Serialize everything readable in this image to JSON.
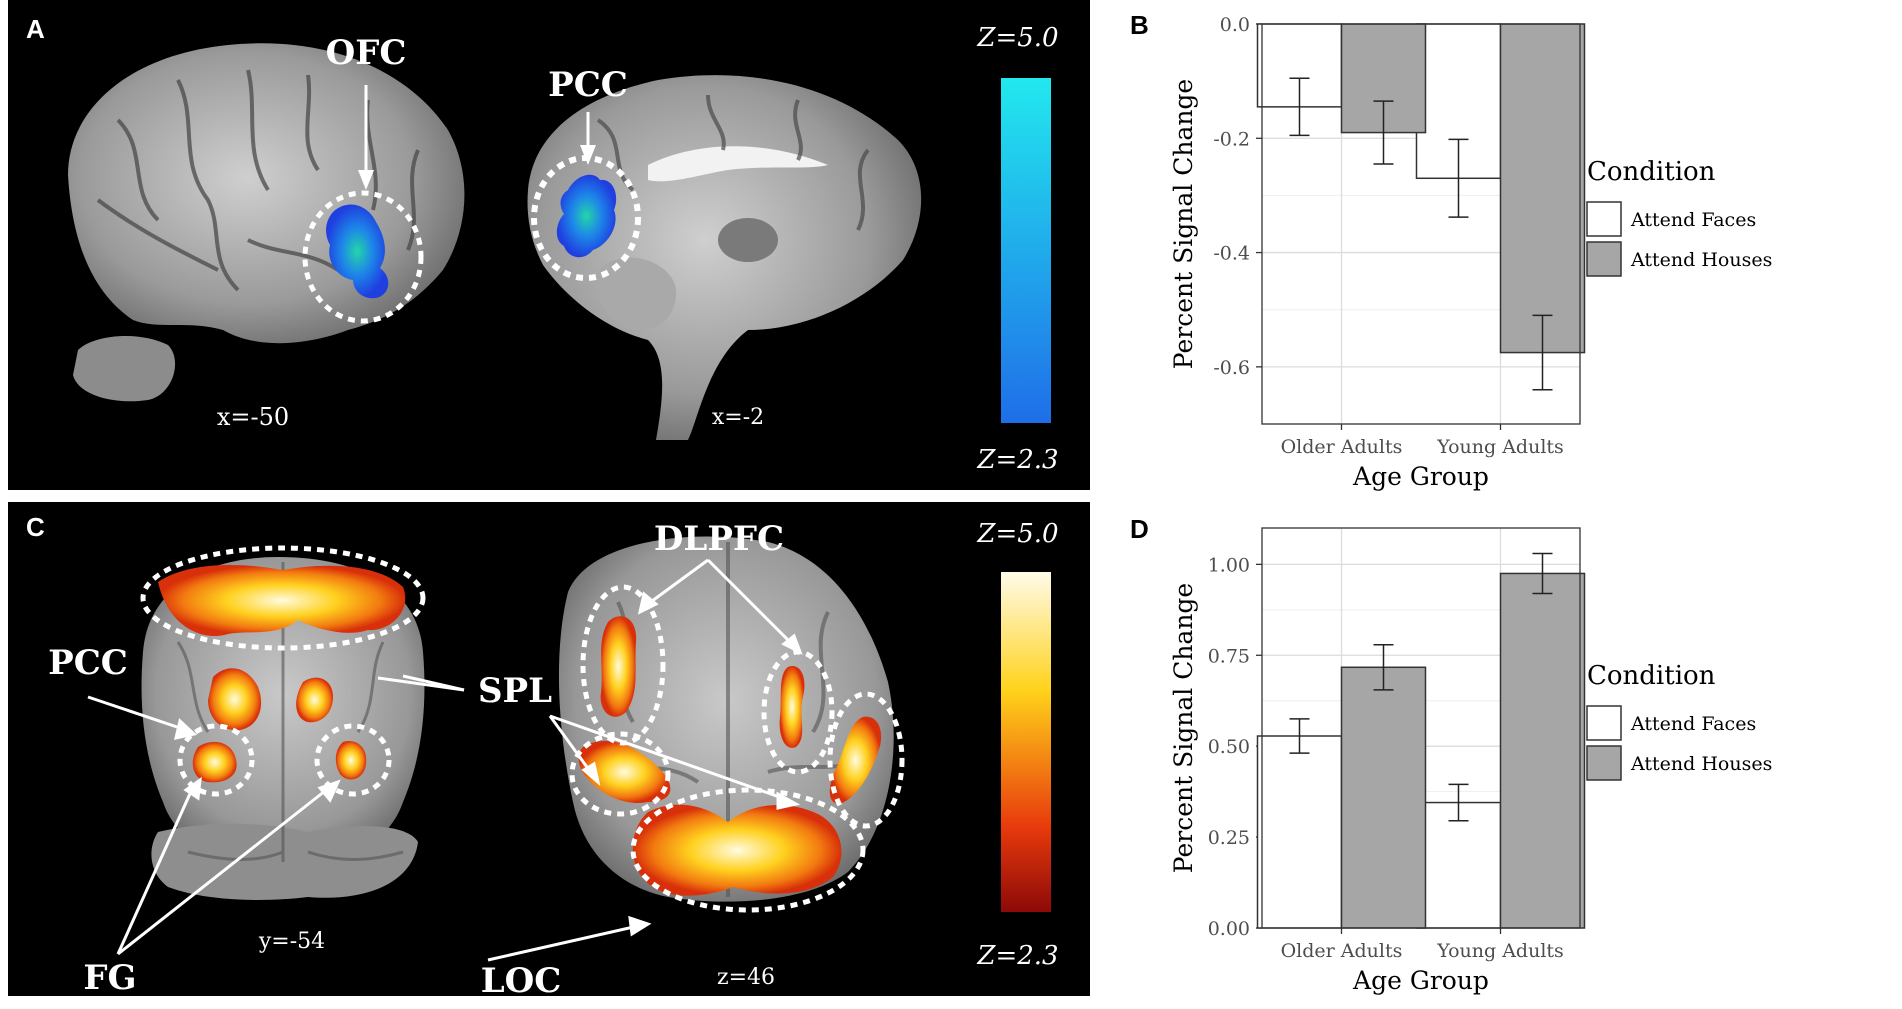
{
  "panels": {
    "A": "A",
    "B": "B",
    "C": "C",
    "D": "D"
  },
  "panelA": {
    "labels": {
      "ofc": "OFC",
      "pcc": "PCC"
    },
    "coords": {
      "left": "x=-50",
      "right": "x=-2"
    },
    "scale": {
      "max": "Z=5.0",
      "min": "Z=2.3"
    }
  },
  "panelC": {
    "labels": {
      "pcc": "PCC",
      "fg": "FG",
      "spl": "SPL",
      "dlpfc": "DLPFC",
      "loc": "LOC"
    },
    "coords": {
      "left": "y=-54",
      "right": "z=46"
    },
    "scale": {
      "max": "Z=5.0",
      "min": "Z=2.3"
    }
  },
  "colors": {
    "faces_fill": "#ffffff",
    "houses_fill": "#a6a6a6",
    "blue_top": "#22e8ee",
    "blue_bottom": "#1f6ee8",
    "hot_top": "#fffbe8",
    "hot_mid": "#ffd21a",
    "hot_low": "#e83a0c",
    "hot_bottom": "#8c0a08"
  },
  "chart_data": [
    {
      "id": "B",
      "type": "bar",
      "title": "",
      "xlabel": "Age Group",
      "ylabel": "Percent Signal Change",
      "categories": [
        "Older Adults",
        "Young Adults"
      ],
      "series": [
        {
          "name": "Attend Faces",
          "values": [
            -0.145,
            -0.27
          ],
          "errors": [
            0.05,
            0.068
          ]
        },
        {
          "name": "Attend Houses",
          "values": [
            -0.19,
            -0.575
          ],
          "errors": [
            0.055,
            0.065
          ]
        }
      ],
      "ylim": [
        -0.7,
        0.0
      ],
      "yticks": [
        0.0,
        -0.2,
        -0.4,
        -0.6
      ],
      "yticklabels": [
        "0.0",
        "-0.2",
        "-0.4",
        "-0.6"
      ],
      "legend_title": "Condition",
      "legend_position": "right",
      "grid": true
    },
    {
      "id": "D",
      "type": "bar",
      "title": "",
      "xlabel": "Age Group",
      "ylabel": "Percent Signal Change",
      "categories": [
        "Older Adults",
        "Young Adults"
      ],
      "series": [
        {
          "name": "Attend Faces",
          "values": [
            0.528,
            0.345
          ],
          "errors": [
            0.047,
            0.05
          ]
        },
        {
          "name": "Attend Houses",
          "values": [
            0.717,
            0.975
          ],
          "errors": [
            0.062,
            0.055
          ]
        }
      ],
      "ylim": [
        0.0,
        1.1
      ],
      "yticks": [
        0.0,
        0.25,
        0.5,
        0.75,
        1.0
      ],
      "yticklabels": [
        "0.00",
        "0.25",
        "0.50",
        "0.75",
        "1.00"
      ],
      "legend_title": "Condition",
      "legend_position": "right",
      "grid": true
    }
  ]
}
